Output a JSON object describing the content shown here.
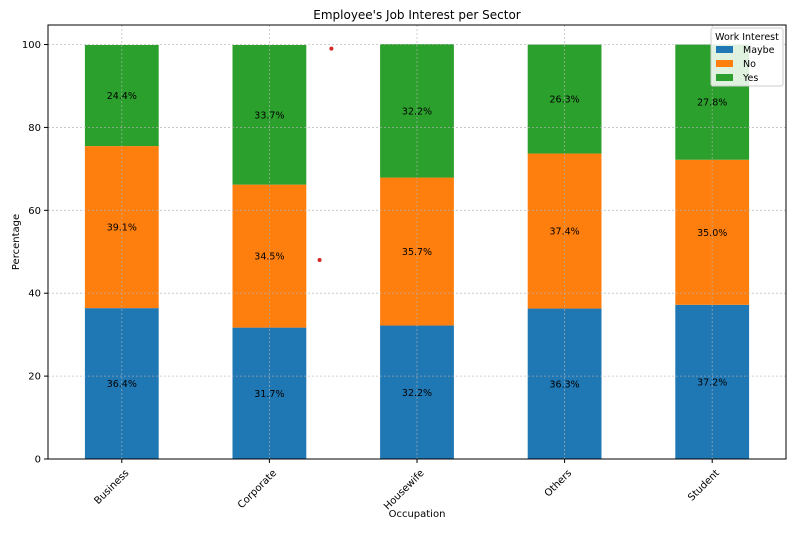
{
  "chart_data": {
    "type": "bar",
    "stacked": true,
    "title": "Employee's Job Interest per Sector",
    "xlabel": "Occupation",
    "ylabel": "Percentage",
    "categories": [
      "Business",
      "Corporate",
      "Housewife",
      "Others",
      "Student"
    ],
    "ylim": [
      0,
      100
    ],
    "yticks": [
      0,
      20,
      40,
      60,
      80,
      100
    ],
    "grid": true,
    "legend": {
      "title": "Work Interest",
      "placement": "top-right"
    },
    "series": [
      {
        "name": "Maybe",
        "color": "#1f77b4",
        "values": [
          36.4,
          31.7,
          32.2,
          36.3,
          37.2
        ],
        "labels": [
          "36.4%",
          "31.7%",
          "32.2%",
          "36.3%",
          "37.2%"
        ]
      },
      {
        "name": "No",
        "color": "#ff7f0e",
        "values": [
          39.1,
          34.5,
          35.7,
          37.4,
          35.0
        ],
        "labels": [
          "39.1%",
          "34.5%",
          "35.7%",
          "37.4%",
          "35.0%"
        ]
      },
      {
        "name": "Yes",
        "color": "#2ca02c",
        "values": [
          24.4,
          33.7,
          32.2,
          26.3,
          27.8
        ],
        "labels": [
          "24.4%",
          "33.7%",
          "32.2%",
          "26.3%",
          "27.8%"
        ]
      }
    ],
    "annotations": [
      {
        "type": "point",
        "x_between": [
          "Corporate",
          "Housewife"
        ],
        "x_offset": 0.34,
        "y": 48.0,
        "color": "#d62728"
      },
      {
        "type": "point",
        "x_between": [
          "Corporate",
          "Housewife"
        ],
        "x_offset": 0.42,
        "y": 99.0,
        "color": "#d62728"
      }
    ]
  }
}
